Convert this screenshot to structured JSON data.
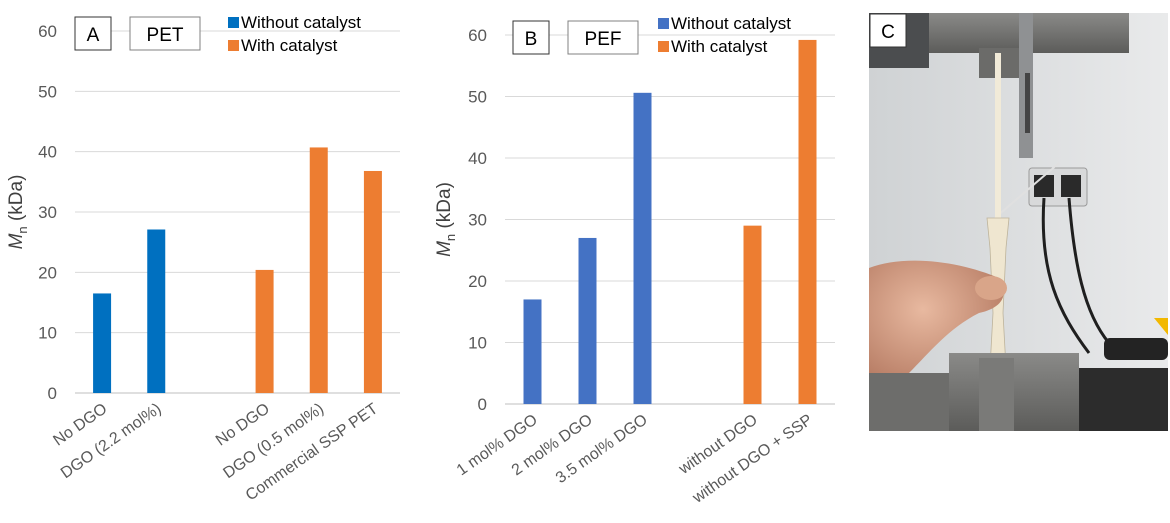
{
  "chart_data": [
    {
      "type": "bar",
      "panel_label": "A",
      "title": "PET",
      "ylabel_main": "M",
      "ylabel_sub": "n",
      "ylabel_unit": " (kDa)",
      "ylim": [
        0,
        60
      ],
      "yticks": [
        0,
        10,
        20,
        30,
        40,
        50,
        60
      ],
      "categories": [
        "No DGO",
        "DGO (2.2 mol%)",
        "",
        "No DGO",
        "DGO (0.5 mol%)",
        "Commercial SSP PET"
      ],
      "series": [
        {
          "name": "Without catalyst",
          "color": "#0070c0",
          "values": [
            16.5,
            27.1,
            null,
            null,
            null,
            null
          ]
        },
        {
          "name": "With catalyst",
          "color": "#ed7d31",
          "values": [
            null,
            null,
            null,
            20.4,
            40.7,
            36.8
          ]
        }
      ],
      "legend_position": "top-right",
      "grid": true
    },
    {
      "type": "bar",
      "panel_label": "B",
      "title": "PEF",
      "ylabel_main": "M",
      "ylabel_sub": "n",
      "ylabel_unit": " (kDa)",
      "ylim": [
        0,
        60
      ],
      "yticks": [
        0,
        10,
        20,
        30,
        40,
        50,
        60
      ],
      "categories": [
        "1 mol% DGO",
        "2 mol% DGO",
        "3.5 mol% DGO",
        "",
        "without DGO",
        "without DGO + SSP"
      ],
      "series": [
        {
          "name": "Without catalyst",
          "color": "#4472c4",
          "values": [
            17.0,
            27.0,
            50.6,
            null,
            null,
            null
          ]
        },
        {
          "name": "With catalyst",
          "color": "#ed7d31",
          "values": [
            null,
            null,
            null,
            null,
            29.0,
            59.2
          ]
        }
      ],
      "legend_position": "top-right",
      "grid": true
    }
  ],
  "photo": {
    "panel_label": "C"
  }
}
